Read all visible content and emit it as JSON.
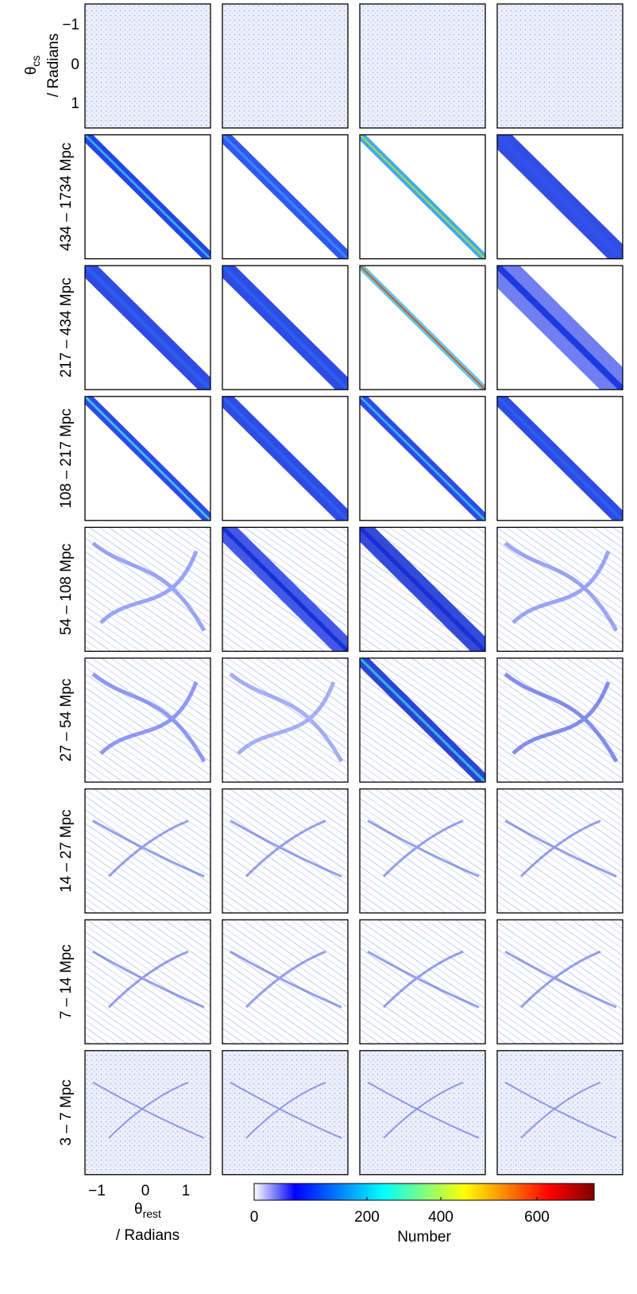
{
  "y_axis": {
    "symbol": "θ",
    "subscript": "cs",
    "unit": "/ Radians",
    "ticks": [
      "−1",
      "0",
      "1"
    ]
  },
  "x_axis": {
    "symbol": "θ",
    "subscript": "rest",
    "unit": "/ Radians",
    "ticks": [
      "−1",
      "0",
      "1"
    ]
  },
  "row_labels": [
    "434 – 1734 Mpc",
    "217 – 434 Mpc",
    "108 – 217 Mpc",
    "54 – 108 Mpc",
    "27 – 54 Mpc",
    "14 – 27 Mpc",
    "7 – 14 Mpc",
    "3 – 7 Mpc"
  ],
  "colorbar": {
    "label": "Number",
    "ticks": [
      "0",
      "200",
      "400",
      "600"
    ]
  }
}
